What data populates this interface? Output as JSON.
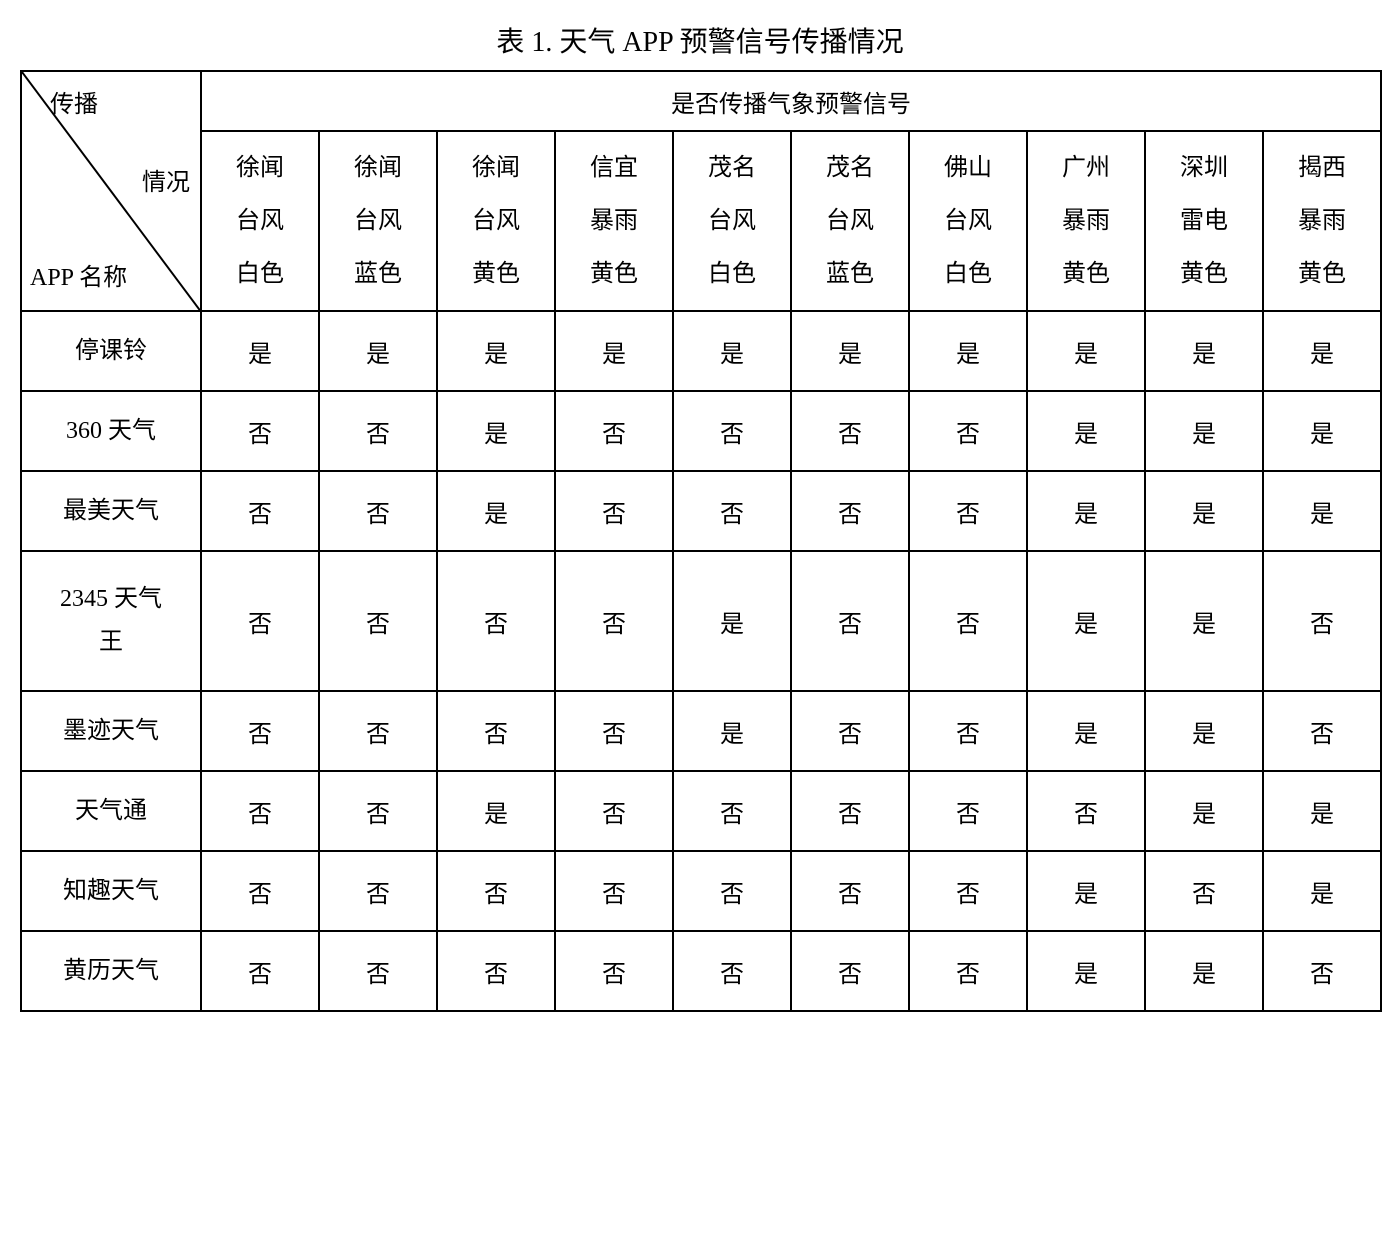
{
  "title": "表 1.  天气 APP 预警信号传播情况",
  "diagonal": {
    "top": "传播",
    "mid": "情况",
    "bottom": "APP 名称"
  },
  "group_header": "是否传播气象预警信号",
  "columns": [
    {
      "l1": "徐闻",
      "l2": "台风",
      "l3": "白色"
    },
    {
      "l1": "徐闻",
      "l2": "台风",
      "l3": "蓝色"
    },
    {
      "l1": "徐闻",
      "l2": "台风",
      "l3": "黄色"
    },
    {
      "l1": "信宜",
      "l2": "暴雨",
      "l3": "黄色"
    },
    {
      "l1": "茂名",
      "l2": "台风",
      "l3": "白色"
    },
    {
      "l1": "茂名",
      "l2": "台风",
      "l3": "蓝色"
    },
    {
      "l1": "佛山",
      "l2": "台风",
      "l3": "白色"
    },
    {
      "l1": "广州",
      "l2": "暴雨",
      "l3": "黄色"
    },
    {
      "l1": "深圳",
      "l2": "雷电",
      "l3": "黄色"
    },
    {
      "l1": "揭西",
      "l2": "暴雨",
      "l3": "黄色"
    }
  ],
  "rows": [
    {
      "name": "停课铃",
      "tall": false,
      "values": [
        "是",
        "是",
        "是",
        "是",
        "是",
        "是",
        "是",
        "是",
        "是",
        "是"
      ]
    },
    {
      "name": "360 天气",
      "tall": false,
      "values": [
        "否",
        "否",
        "是",
        "否",
        "否",
        "否",
        "否",
        "是",
        "是",
        "是"
      ]
    },
    {
      "name": "最美天气",
      "tall": false,
      "values": [
        "否",
        "否",
        "是",
        "否",
        "否",
        "否",
        "否",
        "是",
        "是",
        "是"
      ]
    },
    {
      "name": "2345 天气王",
      "tall": true,
      "values": [
        "否",
        "否",
        "否",
        "否",
        "是",
        "否",
        "否",
        "是",
        "是",
        "否"
      ]
    },
    {
      "name": "墨迹天气",
      "tall": false,
      "values": [
        "否",
        "否",
        "否",
        "否",
        "是",
        "否",
        "否",
        "是",
        "是",
        "否"
      ]
    },
    {
      "name": "天气通",
      "tall": false,
      "values": [
        "否",
        "否",
        "是",
        "否",
        "否",
        "否",
        "否",
        "否",
        "是",
        "是"
      ]
    },
    {
      "name": "知趣天气",
      "tall": false,
      "values": [
        "否",
        "否",
        "否",
        "否",
        "否",
        "否",
        "否",
        "是",
        "否",
        "是"
      ]
    },
    {
      "name": "黄历天气",
      "tall": false,
      "values": [
        "否",
        "否",
        "否",
        "否",
        "否",
        "否",
        "否",
        "是",
        "是",
        "否"
      ]
    }
  ],
  "style": {
    "border_color": "#000000",
    "background_color": "#ffffff",
    "text_color": "#000000",
    "font_family": "SimSun",
    "title_fontsize": 28,
    "cell_fontsize": 24,
    "border_width": 2
  }
}
